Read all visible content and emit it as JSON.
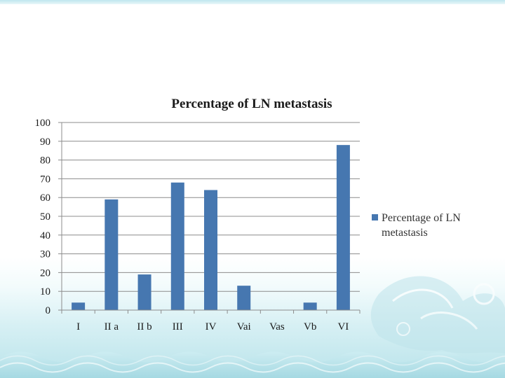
{
  "chart_data": {
    "type": "bar",
    "title": "Percentage of LN metastasis",
    "categories": [
      "I",
      "II a",
      "II b",
      "III",
      "IV",
      "Vai",
      "Vas",
      "Vb",
      "VI"
    ],
    "series": [
      {
        "name": "Percentage of LN metastasis",
        "legend_lines": [
          "Percentage of LN",
          "metastasis"
        ],
        "color": "#4677b0",
        "values": [
          4,
          59,
          19,
          68,
          64,
          13,
          0,
          4,
          88
        ]
      }
    ],
    "ylim": [
      0,
      100
    ],
    "yticks": [
      "0",
      "10",
      "20",
      "30",
      "40",
      "50",
      "60",
      "70",
      "80",
      "90",
      "100"
    ],
    "grid": true,
    "legend": "right"
  }
}
